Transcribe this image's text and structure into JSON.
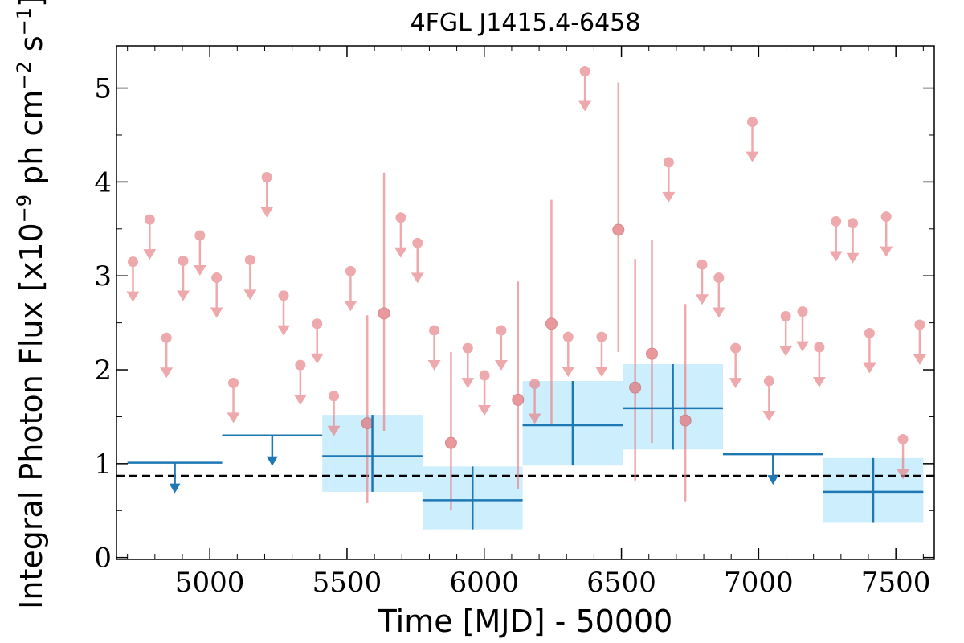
{
  "chart_data": {
    "type": "scatter",
    "title": "4FGL J1415.4-6458",
    "xlabel": "Time [MJD] - 50000",
    "ylabel_main": "Integral Photon Flux [x10",
    "ylabel_exp1": "−9",
    "ylabel_mid": " ph cm",
    "ylabel_exp2": "−2",
    "ylabel_mid2": " s",
    "ylabel_exp3": "−1",
    "ylabel_end": "]",
    "xlim": [
      4660,
      7640
    ],
    "ylim": [
      -0.02,
      5.45
    ],
    "xticks": [
      5000,
      5500,
      6000,
      6500,
      7000,
      7500
    ],
    "yticks": [
      0,
      1,
      2,
      3,
      4,
      5
    ],
    "mean_flux": 0.87,
    "colors": {
      "fine": "#e8868a",
      "coarse": "#1f77b4",
      "band": "#cdeefc",
      "mean_line": "#000000"
    },
    "coarse_bins": [
      {
        "x0": 4700,
        "x1": 5045,
        "y": 1.01,
        "upper_limit": true
      },
      {
        "x0": 5045,
        "x1": 5410,
        "y": 1.3,
        "upper_limit": true
      },
      {
        "x0": 5410,
        "x1": 5775,
        "y": 1.08,
        "ylo": 0.7,
        "yhi": 1.52,
        "upper_limit": false
      },
      {
        "x0": 5775,
        "x1": 6140,
        "y": 0.61,
        "ylo": 0.3,
        "yhi": 0.97,
        "upper_limit": false
      },
      {
        "x0": 6140,
        "x1": 6505,
        "y": 1.41,
        "ylo": 0.98,
        "yhi": 1.88,
        "upper_limit": false
      },
      {
        "x0": 6505,
        "x1": 6870,
        "y": 1.59,
        "ylo": 1.15,
        "yhi": 2.06,
        "upper_limit": false
      },
      {
        "x0": 6870,
        "x1": 7235,
        "y": 1.1,
        "upper_limit": true
      },
      {
        "x0": 7235,
        "x1": 7600,
        "y": 0.7,
        "ylo": 0.37,
        "yhi": 1.06,
        "upper_limit": false
      }
    ],
    "fine_upper_limits": [
      {
        "x": 4720,
        "y": 3.15
      },
      {
        "x": 4781,
        "y": 3.6
      },
      {
        "x": 4842,
        "y": 2.34
      },
      {
        "x": 4903,
        "y": 3.16
      },
      {
        "x": 4964,
        "y": 3.43
      },
      {
        "x": 5025,
        "y": 2.98
      },
      {
        "x": 5086,
        "y": 1.86
      },
      {
        "x": 5147,
        "y": 3.17
      },
      {
        "x": 5208,
        "y": 4.05
      },
      {
        "x": 5269,
        "y": 2.79
      },
      {
        "x": 5330,
        "y": 2.05
      },
      {
        "x": 5391,
        "y": 2.49
      },
      {
        "x": 5452,
        "y": 1.72
      },
      {
        "x": 5513,
        "y": 3.05
      },
      {
        "x": 5696,
        "y": 3.62
      },
      {
        "x": 5757,
        "y": 3.35
      },
      {
        "x": 5818,
        "y": 2.42
      },
      {
        "x": 5940,
        "y": 2.23
      },
      {
        "x": 6001,
        "y": 1.94
      },
      {
        "x": 6062,
        "y": 2.42
      },
      {
        "x": 6184,
        "y": 1.85
      },
      {
        "x": 6306,
        "y": 2.35
      },
      {
        "x": 6367,
        "y": 5.18
      },
      {
        "x": 6428,
        "y": 2.35
      },
      {
        "x": 6672,
        "y": 4.21
      },
      {
        "x": 6794,
        "y": 3.12
      },
      {
        "x": 6855,
        "y": 2.98
      },
      {
        "x": 6916,
        "y": 2.23
      },
      {
        "x": 6977,
        "y": 4.64
      },
      {
        "x": 7038,
        "y": 1.88
      },
      {
        "x": 7099,
        "y": 2.57
      },
      {
        "x": 7160,
        "y": 2.62
      },
      {
        "x": 7221,
        "y": 2.24
      },
      {
        "x": 7282,
        "y": 3.58
      },
      {
        "x": 7343,
        "y": 3.56
      },
      {
        "x": 7404,
        "y": 2.39
      },
      {
        "x": 7465,
        "y": 3.63
      },
      {
        "x": 7526,
        "y": 1.26
      },
      {
        "x": 7587,
        "y": 2.48
      }
    ],
    "fine_detections": [
      {
        "x": 5574,
        "y": 1.43,
        "ylo": 0.58,
        "yhi": 2.58
      },
      {
        "x": 5635,
        "y": 2.6,
        "ylo": 1.35,
        "yhi": 4.1
      },
      {
        "x": 5879,
        "y": 1.22,
        "ylo": 0.5,
        "yhi": 2.19
      },
      {
        "x": 6123,
        "y": 1.68,
        "ylo": 0.73,
        "yhi": 2.94
      },
      {
        "x": 6245,
        "y": 2.49,
        "ylo": 1.42,
        "yhi": 3.81
      },
      {
        "x": 6489,
        "y": 3.49,
        "ylo": 2.19,
        "yhi": 5.06
      },
      {
        "x": 6550,
        "y": 1.81,
        "ylo": 0.82,
        "yhi": 3.18
      },
      {
        "x": 6611,
        "y": 2.17,
        "ylo": 1.22,
        "yhi": 3.38
      },
      {
        "x": 6733,
        "y": 1.46,
        "ylo": 0.6,
        "yhi": 2.7
      }
    ]
  }
}
